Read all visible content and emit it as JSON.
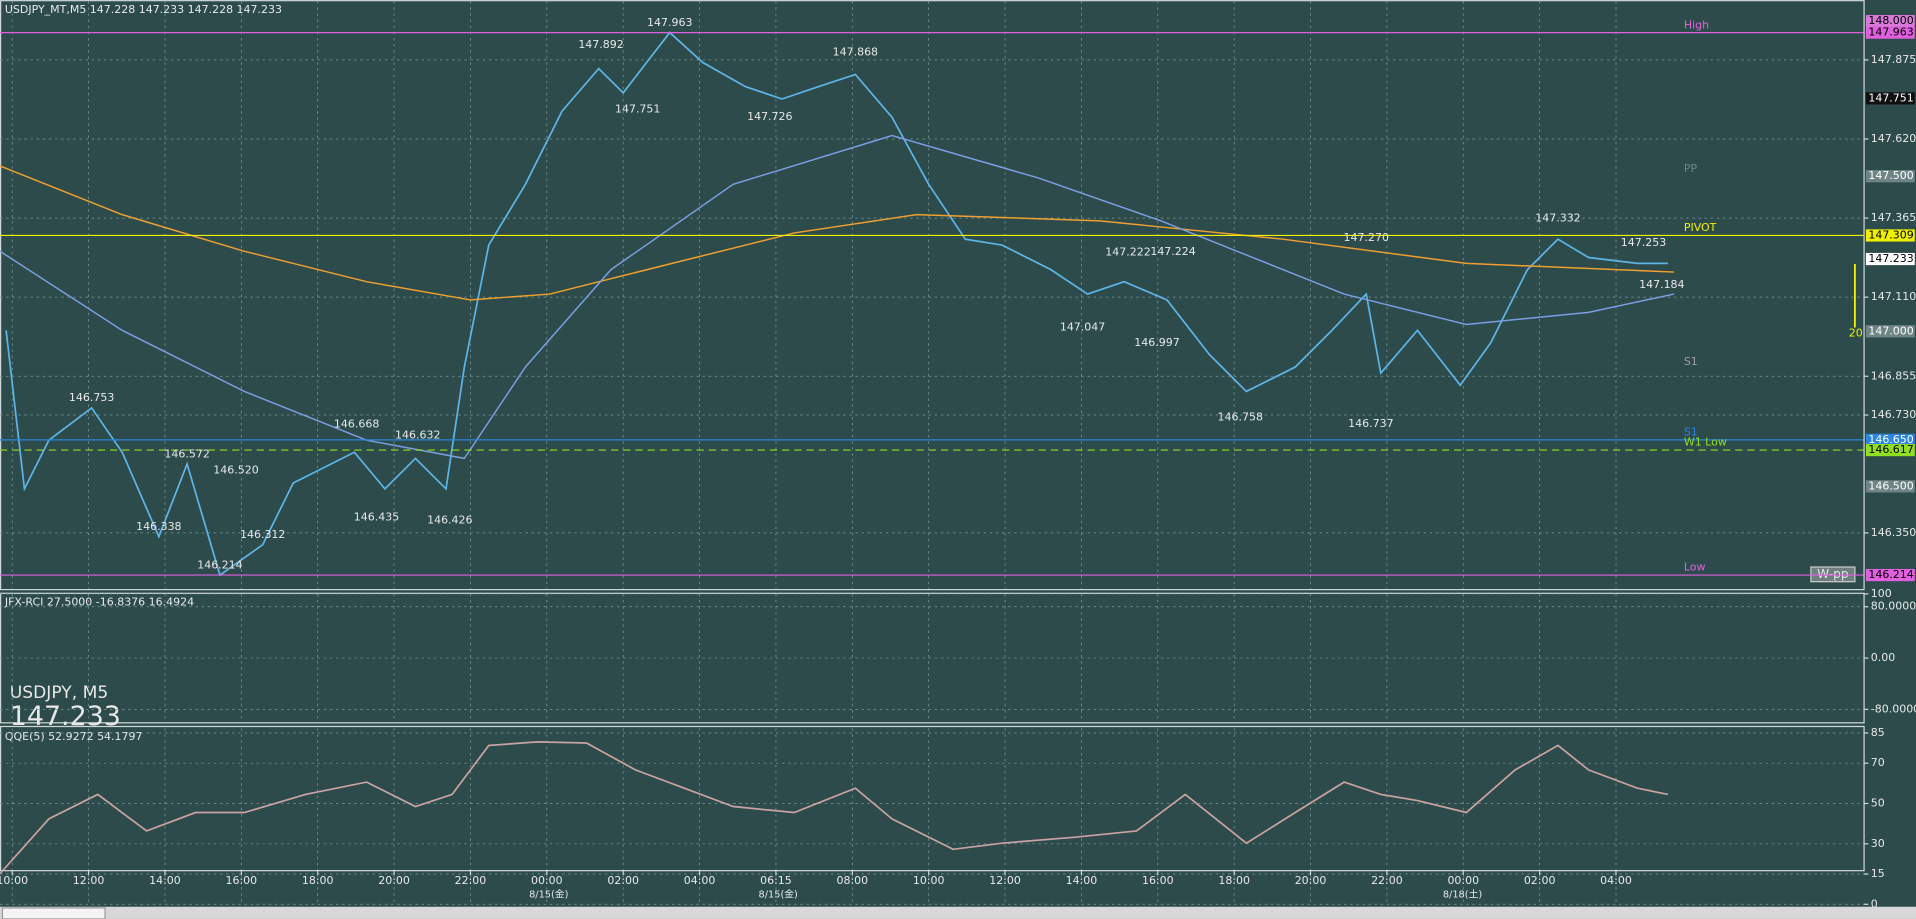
{
  "symbol_label": "USDJPY, M5",
  "price_label": "147.233",
  "wpp_label": "W-pp",
  "period_label": "20",
  "chart_data": [
    {
      "type": "line",
      "title": "USDJPY_MT,M5  147.228 147.233 147.228 147.233",
      "xlim": [
        -0.32,
        48.48
      ],
      "xticks": [
        {
          "value": 0,
          "label": "10:00"
        },
        {
          "value": 2,
          "label": "12:00"
        },
        {
          "value": 4,
          "label": "14:00"
        },
        {
          "value": 6,
          "label": "16:00"
        },
        {
          "value": 8,
          "label": "18:00"
        },
        {
          "value": 10,
          "label": "20:00"
        },
        {
          "value": 12,
          "label": "22:00"
        },
        {
          "value": 14,
          "label": "00:00"
        },
        {
          "value": 16,
          "label": "02:00"
        },
        {
          "value": 18,
          "label": "04:00"
        },
        {
          "value": 20,
          "label": "06:15"
        },
        {
          "value": 22,
          "label": "08:00"
        },
        {
          "value": 24,
          "label": "10:00"
        },
        {
          "value": 26,
          "label": "12:00"
        },
        {
          "value": 28,
          "label": "14:00"
        },
        {
          "value": 30,
          "label": "16:00"
        },
        {
          "value": 32,
          "label": "18:00"
        },
        {
          "value": 34,
          "label": "20:00"
        },
        {
          "value": 36,
          "label": "22:00"
        },
        {
          "value": 38,
          "label": "00:00"
        },
        {
          "value": 40,
          "label": "02:00"
        },
        {
          "value": 42,
          "label": "04:00"
        }
      ],
      "date_ticks": [
        {
          "value": 14.05,
          "label": "8/15(金)"
        },
        {
          "value": 20.06,
          "label": "8/15(金)"
        },
        {
          "value": 37.98,
          "label": "8/18(土)"
        }
      ],
      "ylim": [
        146.169,
        148.064
      ],
      "yticks": [
        {
          "value": 147.875,
          "label": "147.875"
        },
        {
          "value": 147.62,
          "label": "147.620"
        },
        {
          "value": 147.365,
          "label": "147.365"
        },
        {
          "value": 147.11,
          "label": "147.110"
        },
        {
          "value": 146.855,
          "label": "146.855"
        },
        {
          "value": 146.73,
          "label": "146.730"
        },
        {
          "value": 146.35,
          "label": "146.350"
        }
      ],
      "grid": true,
      "series": [
        {
          "color": "#5fb4e6",
          "x": [
            -0.16,
            0.32,
            0.96,
            2.08,
            2.88,
            3.84,
            4.58,
            5.44,
            6.56,
            7.36,
            8.96,
            9.76,
            10.56,
            11.36,
            11.84,
            12.48,
            13.44,
            14.4,
            15.36,
            16,
            17.22,
            18.08,
            19.2,
            20.16,
            21.12,
            22.08,
            23.04,
            24,
            24.96,
            25.92,
            27.2,
            28.16,
            29.12,
            30.24,
            31.36,
            32.32,
            33.6,
            34.56,
            35.46,
            35.84,
            36.8,
            37.92,
            38.72,
            39.68,
            40.48,
            41.28,
            42.56,
            43.36
          ],
          "values": [
            147.003,
            146.492,
            146.649,
            146.753,
            146.61,
            146.338,
            146.572,
            146.214,
            146.312,
            146.511,
            146.61,
            146.492,
            146.59,
            146.492,
            146.885,
            147.278,
            147.474,
            147.71,
            147.847,
            147.769,
            147.963,
            147.867,
            147.789,
            147.749,
            147.789,
            147.828,
            147.69,
            147.474,
            147.297,
            147.278,
            147.199,
            147.12,
            147.16,
            147.101,
            146.924,
            146.806,
            146.885,
            147.003,
            147.12,
            146.865,
            147.003,
            146.826,
            146.963,
            147.199,
            147.297,
            147.238,
            147.219,
            147.219
          ]
        },
        {
          "color": "#f0a030",
          "x": [
            -0.32,
            2.88,
            6.08,
            9.28,
            12,
            14.08,
            17.28,
            20.48,
            23.68,
            28.48,
            33.28,
            38.08,
            43.52
          ],
          "values": [
            147.533,
            147.376,
            147.258,
            147.16,
            147.101,
            147.12,
            147.219,
            147.317,
            147.376,
            147.356,
            147.297,
            147.219,
            147.191
          ]
        },
        {
          "color": "#7a9fe0",
          "x": [
            -0.32,
            2.88,
            6.08,
            9.28,
            11.84,
            13.44,
            15.68,
            18.88,
            23.04,
            26.88,
            30.08,
            34.88,
            38.08,
            41.28,
            43.52
          ],
          "values": [
            147.258,
            147.003,
            146.806,
            146.649,
            146.59,
            146.885,
            147.199,
            147.474,
            147.631,
            147.494,
            147.356,
            147.12,
            147.022,
            147.061,
            147.12
          ]
        }
      ],
      "annotations": [
        {
          "x": 17.22,
          "value": 147.963,
          "label": "147.963"
        },
        {
          "x": 15.42,
          "value": 147.892,
          "label": "147.892"
        },
        {
          "x": 22.08,
          "value": 147.868,
          "label": "147.868"
        },
        {
          "x": 16.38,
          "value": 147.751,
          "label": "147.751"
        },
        {
          "x": 19.84,
          "value": 147.726,
          "label": "147.726"
        },
        {
          "x": 2.08,
          "value": 146.753,
          "label": "146.753"
        },
        {
          "x": 4.58,
          "value": 146.572,
          "label": "146.572"
        },
        {
          "x": 5.86,
          "value": 146.52,
          "label": "146.520"
        },
        {
          "x": 9.02,
          "value": 146.668,
          "label": "146.668"
        },
        {
          "x": 10.62,
          "value": 146.632,
          "label": "146.632"
        },
        {
          "x": 3.84,
          "value": 146.338,
          "label": "146.338"
        },
        {
          "x": 6.56,
          "value": 146.312,
          "label": "146.312"
        },
        {
          "x": 5.44,
          "value": 146.214,
          "label": "146.214"
        },
        {
          "x": 9.54,
          "value": 146.435,
          "label": "146.435"
        },
        {
          "x": 11.46,
          "value": 146.426,
          "label": "146.426"
        },
        {
          "x": 29.22,
          "value": 147.222,
          "label": "147.222"
        },
        {
          "x": 30.4,
          "value": 147.224,
          "label": "147.224"
        },
        {
          "x": 28.03,
          "value": 147.047,
          "label": "147.047"
        },
        {
          "x": 29.98,
          "value": 146.997,
          "label": "146.997"
        },
        {
          "x": 32.16,
          "value": 146.758,
          "label": "146.758"
        },
        {
          "x": 35.46,
          "value": 147.27,
          "label": "147.270"
        },
        {
          "x": 35.58,
          "value": 146.737,
          "label": "146.737"
        },
        {
          "x": 40.48,
          "value": 147.332,
          "label": "147.332"
        },
        {
          "x": 42.72,
          "value": 147.253,
          "label": "147.253"
        },
        {
          "x": 43.2,
          "value": 147.184,
          "label": "147.184"
        }
      ],
      "levels": [
        {
          "value": 148.0,
          "label": "148.000",
          "color": "#d77ad7"
        },
        {
          "value": 147.963,
          "label": "147.963",
          "color": "#e060e0",
          "name": "High",
          "line_style": "solid"
        },
        {
          "value": 147.751,
          "label": "147.751",
          "color": "#101010"
        },
        {
          "value": 147.5,
          "label": "147.500",
          "color": "#6f8585",
          "name": "PP"
        },
        {
          "value": 147.309,
          "label": "147.309",
          "color": "#f0f000",
          "name": "PIVOT",
          "line_style": "solid"
        },
        {
          "value": 147.233,
          "label": "147.233",
          "color": "#ffffff"
        },
        {
          "value": 147.0,
          "label": "147.000",
          "color": "#6f8585"
        },
        {
          "value": 146.877,
          "color": "#a0a0a0",
          "name": "S1"
        },
        {
          "value": 146.65,
          "label": "146.650",
          "color": "#2a86e0",
          "name": "S1",
          "line_style": "solid"
        },
        {
          "value": 146.617,
          "label": "146.617",
          "color": "#90e020",
          "name": "W1 Low",
          "line_style": "dashed"
        },
        {
          "value": 146.5,
          "label": "146.500",
          "color": "#6f8585"
        },
        {
          "value": 146.214,
          "label": "146.214",
          "color": "#e060e0",
          "name": "Low",
          "line_style": "solid"
        }
      ]
    },
    {
      "type": "oscillator",
      "title": "JFX-RCI 27.5000 -16.8376 16.4924",
      "ylim": [
        -100,
        100
      ],
      "yticks": [
        100,
        {
          "value": 80,
          "label": "80.0000"
        },
        {
          "value": 0,
          "label": "0.00"
        },
        {
          "value": -80,
          "label": "-80.0000"
        }
      ],
      "grid": true
    },
    {
      "type": "line",
      "title": "QQE(5) 52.9272 54.1797",
      "ylim": [
        0,
        87.3
      ],
      "yticks": [
        85,
        70,
        50,
        30,
        15,
        0
      ],
      "grid": true,
      "series": [
        {
          "color": "#c9a3a3",
          "x": [
            -0.32,
            0.96,
            2.24,
            3.52,
            4.8,
            6.08,
            7.68,
            9.28,
            10.56,
            11.52,
            12.48,
            13.76,
            15.04,
            16.32,
            17.6,
            18.88,
            20.48,
            22.08,
            23.04,
            24.64,
            25.92,
            27.84,
            29.44,
            30.72,
            32.32,
            33.6,
            34.88,
            35.84,
            36.8,
            38.08,
            39.36,
            40.48,
            41.28,
            42.56,
            43.36
          ],
          "values": [
            15.2,
            42.4,
            54.5,
            36.4,
            45.5,
            45.5,
            54.5,
            60.6,
            48.5,
            54.5,
            78.8,
            80.6,
            80,
            66.7,
            57.6,
            48.5,
            45.5,
            57.6,
            42.4,
            27.3,
            30.3,
            33.3,
            36.4,
            54.5,
            30.3,
            45.5,
            60.6,
            54.5,
            51.5,
            45.5,
            66.7,
            78.8,
            66.7,
            57.6,
            54.5
          ]
        }
      ]
    }
  ]
}
